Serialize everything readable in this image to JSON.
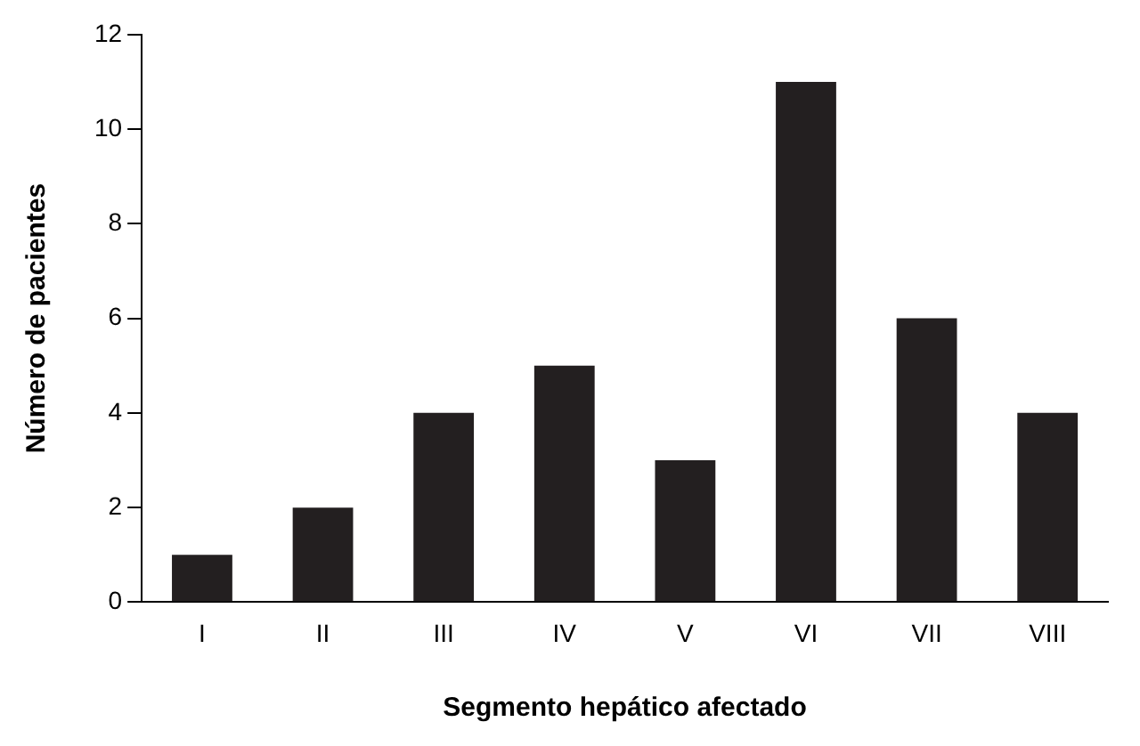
{
  "chart_data": {
    "type": "bar",
    "xlabel": "Segmento hepático afectado",
    "ylabel": "Número de pacientes",
    "categories": [
      "I",
      "II",
      "III",
      "IV",
      "V",
      "VI",
      "VII",
      "VIII"
    ],
    "values": [
      1,
      2,
      4,
      5,
      3,
      11,
      6,
      4
    ],
    "color": "#231f20",
    "ylim": [
      0,
      12
    ],
    "yticks": [
      0,
      2,
      4,
      6,
      8,
      10,
      12
    ],
    "grid": false,
    "legend": false
  }
}
